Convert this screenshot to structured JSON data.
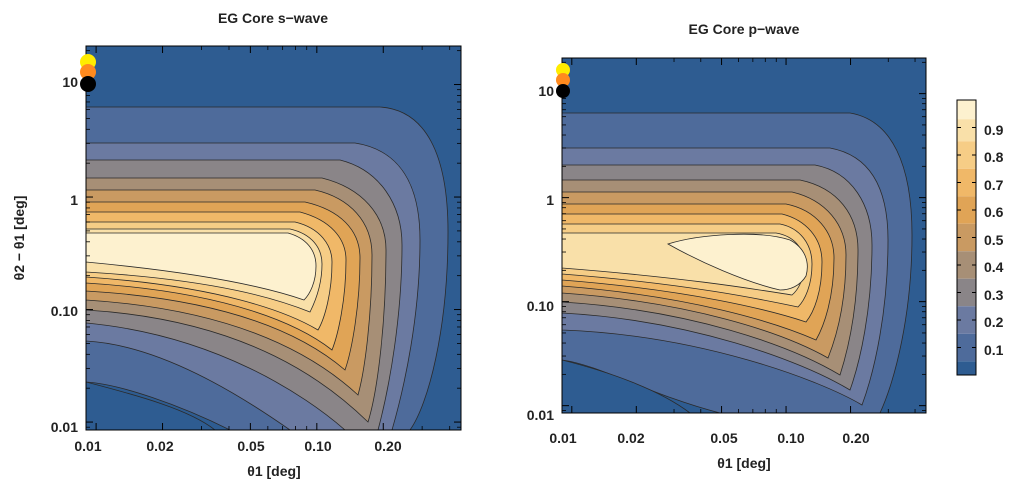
{
  "colors": {
    "levels": [
      "#2e5c91",
      "#4e6b9b",
      "#6b7aa1",
      "#8a8588",
      "#a78f76",
      "#c99a62",
      "#e0a456",
      "#f0b868",
      "#f6cd86",
      "#f9e0a9",
      "#fdf1cf"
    ],
    "frame": "#000000",
    "contour_line": "#2a2a2a",
    "marker_yellow": "#ffec00",
    "marker_orange": "#ff8a1e",
    "marker_black": "#000000"
  },
  "chart_data": [
    {
      "type": "contour",
      "title": "EG Core s−wave",
      "xlabel": "θ1 [deg]",
      "ylabel": "θ2 − θ1 [deg]",
      "x_scale": "log",
      "y_scale": "log",
      "xlim": [
        0.009,
        0.45
      ],
      "ylim": [
        0.0085,
        22
      ],
      "x_ticks": [
        "0.01",
        "0.02",
        "0.05",
        "0.10",
        "0.20"
      ],
      "x_tick_values": [
        0.01,
        0.02,
        0.05,
        0.1,
        0.2
      ],
      "y_ticks": [
        "0.01",
        "0.10",
        "1",
        "10"
      ],
      "y_tick_values": [
        0.01,
        0.1,
        1,
        10
      ],
      "peak": {
        "x": 0.012,
        "y": 0.35,
        "value": 0.95
      },
      "contour_levels": [
        0.1,
        0.2,
        0.3,
        0.4,
        0.5,
        0.6,
        0.7,
        0.8,
        0.9
      ],
      "markers": [
        {
          "x": 0.0103,
          "y": 16.5,
          "color": "yellow"
        },
        {
          "x": 0.0103,
          "y": 14.0,
          "color": "orange"
        },
        {
          "x": 0.0103,
          "y": 10.2,
          "color": "black"
        }
      ]
    },
    {
      "type": "contour",
      "title": "EG Core p−wave",
      "xlabel": "θ1 [deg]",
      "ylabel": "",
      "x_scale": "log",
      "y_scale": "log",
      "xlim": [
        0.009,
        0.45
      ],
      "ylim": [
        0.0085,
        22
      ],
      "x_ticks": [
        "0.01",
        "0.02",
        "0.05",
        "0.10",
        "0.20"
      ],
      "x_tick_values": [
        0.01,
        0.02,
        0.05,
        0.1,
        0.2
      ],
      "y_ticks": [
        "0.01",
        "0.10",
        "1",
        "10"
      ],
      "y_tick_values": [
        0.01,
        0.1,
        1,
        10
      ],
      "peak": {
        "x": 0.07,
        "y": 0.3,
        "value": 0.95
      },
      "contour_levels": [
        0.1,
        0.2,
        0.3,
        0.4,
        0.5,
        0.6,
        0.7,
        0.8,
        0.9
      ],
      "markers": [
        {
          "x": 0.0103,
          "y": 16.5,
          "color": "yellow"
        },
        {
          "x": 0.0103,
          "y": 14.0,
          "color": "orange"
        },
        {
          "x": 0.0103,
          "y": 10.2,
          "color": "black"
        }
      ]
    }
  ],
  "colorbar": {
    "labels": [
      "0.9",
      "0.8",
      "0.7",
      "0.6",
      "0.5",
      "0.4",
      "0.3",
      "0.2",
      "0.1"
    ],
    "range": [
      0.0,
      1.0
    ]
  }
}
